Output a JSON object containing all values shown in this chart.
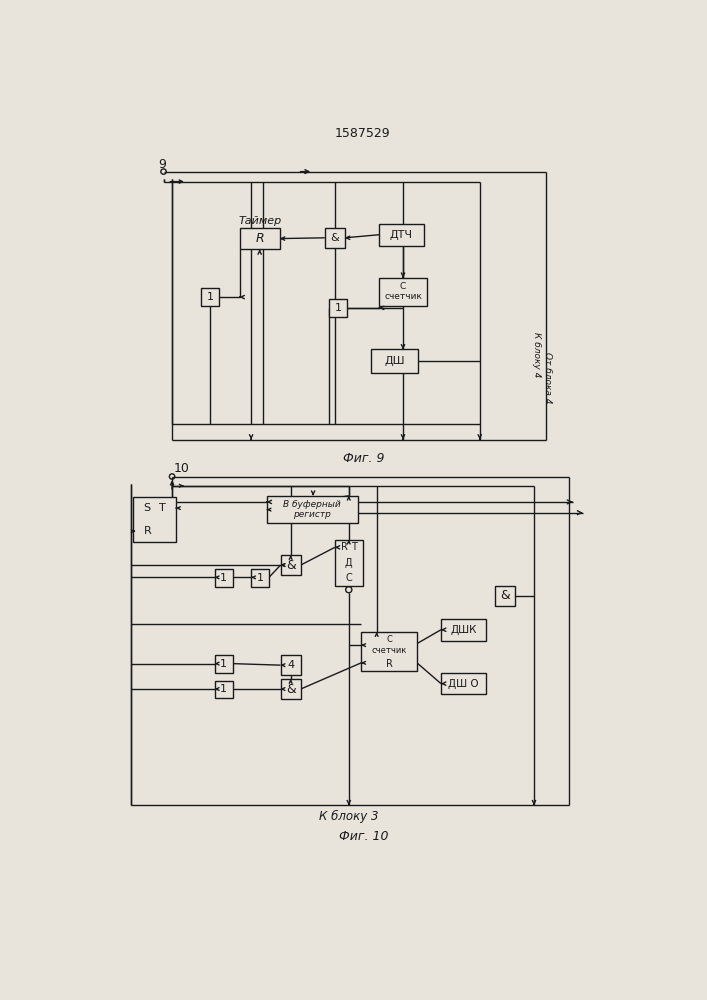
{
  "title": "1587529",
  "fig9_caption": "Фиг. 9",
  "fig10_caption": "Фиг. 10",
  "bg_color": "#e8e4dc",
  "box_facecolor": "#e8e4dc",
  "line_color": "#1a1a1a",
  "text_color": "#1a1a1a",
  "fig9_node_label": "9",
  "fig10_node_label": "10",
  "fig9_right_label1": "К блоку 4",
  "fig9_right_label2": "От блока 4",
  "fig10_bottom_label": "К блоку 3"
}
